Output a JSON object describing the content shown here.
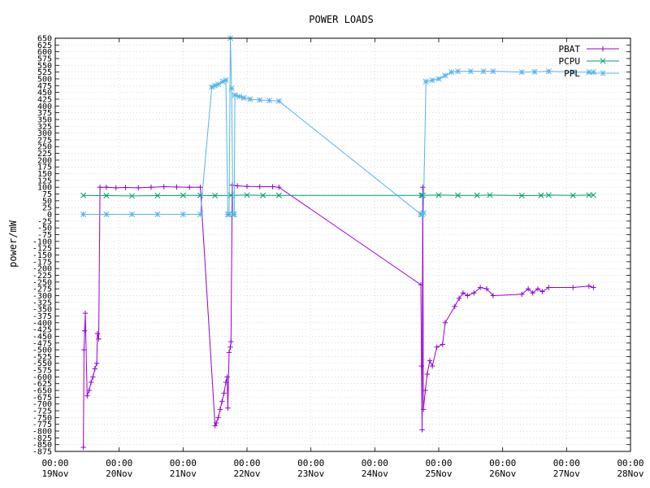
{
  "chart_data": {
    "type": "line",
    "title": "POWER LOADS",
    "xlabel": "",
    "ylabel": "power/mW",
    "ylim": [
      -875,
      650
    ],
    "ytick_step": 25,
    "xlim": [
      "19Nov 00:00",
      "28Nov 00:00"
    ],
    "x_unit": "day of November (19 = 19Nov 00:00)",
    "xticks": [
      {
        "x": 19,
        "time": "00:00",
        "date": "19Nov"
      },
      {
        "x": 20,
        "time": "00:00",
        "date": "20Nov"
      },
      {
        "x": 21,
        "time": "00:00",
        "date": "21Nov"
      },
      {
        "x": 22,
        "time": "00:00",
        "date": "22Nov"
      },
      {
        "x": 23,
        "time": "00:00",
        "date": "23Nov"
      },
      {
        "x": 24,
        "time": "00:00",
        "date": "24Nov"
      },
      {
        "x": 25,
        "time": "00:00",
        "date": "25Nov"
      },
      {
        "x": 26,
        "time": "00:00",
        "date": "26Nov"
      },
      {
        "x": 27,
        "time": "00:00",
        "date": "27Nov"
      },
      {
        "x": 28,
        "time": "00:00",
        "date": "28Nov"
      }
    ],
    "grid": true,
    "legend_position": "top-right",
    "series": [
      {
        "name": "PBAT",
        "color": "#9400d3",
        "marker": "+",
        "points": [
          [
            19.44,
            -860
          ],
          [
            19.45,
            -500
          ],
          [
            19.46,
            -430
          ],
          [
            19.47,
            -365
          ],
          [
            19.5,
            -670
          ],
          [
            19.53,
            -650
          ],
          [
            19.56,
            -620
          ],
          [
            19.59,
            -600
          ],
          [
            19.62,
            -570
          ],
          [
            19.65,
            -550
          ],
          [
            19.66,
            -440
          ],
          [
            19.68,
            -460
          ],
          [
            19.7,
            100
          ],
          [
            19.8,
            100
          ],
          [
            19.95,
            98
          ],
          [
            20.1,
            99
          ],
          [
            20.3,
            98
          ],
          [
            20.5,
            100
          ],
          [
            20.7,
            102
          ],
          [
            20.9,
            101
          ],
          [
            21.1,
            100
          ],
          [
            21.27,
            100
          ],
          [
            21.5,
            -780
          ],
          [
            21.52,
            -770
          ],
          [
            21.55,
            -750
          ],
          [
            21.58,
            -720
          ],
          [
            21.61,
            -690
          ],
          [
            21.64,
            -660
          ],
          [
            21.67,
            -620
          ],
          [
            21.69,
            -600
          ],
          [
            21.7,
            -715
          ],
          [
            21.72,
            -510
          ],
          [
            21.74,
            -490
          ],
          [
            21.75,
            -470
          ],
          [
            21.77,
            108
          ],
          [
            21.85,
            105
          ],
          [
            22.0,
            103
          ],
          [
            22.2,
            102
          ],
          [
            22.4,
            102
          ],
          [
            22.5,
            100
          ],
          [
            24.72,
            -260
          ],
          [
            24.73,
            -560
          ],
          [
            24.74,
            -795
          ],
          [
            24.75,
            100
          ],
          [
            24.76,
            -720
          ],
          [
            24.79,
            -650
          ],
          [
            24.82,
            -590
          ],
          [
            24.86,
            -540
          ],
          [
            24.9,
            -560
          ],
          [
            24.97,
            -490
          ],
          [
            25.06,
            -480
          ],
          [
            25.1,
            -400
          ],
          [
            25.25,
            -340
          ],
          [
            25.32,
            -310
          ],
          [
            25.38,
            -290
          ],
          [
            25.45,
            -300
          ],
          [
            25.55,
            -290
          ],
          [
            25.65,
            -270
          ],
          [
            25.75,
            -275
          ],
          [
            25.85,
            -300
          ],
          [
            26.3,
            -295
          ],
          [
            26.4,
            -275
          ],
          [
            26.47,
            -290
          ],
          [
            26.55,
            -275
          ],
          [
            26.62,
            -285
          ],
          [
            26.72,
            -270
          ],
          [
            27.1,
            -270
          ],
          [
            27.35,
            -265
          ],
          [
            27.42,
            -270
          ]
        ]
      },
      {
        "name": "PCPU",
        "color": "#009e73",
        "marker": "x",
        "points": [
          [
            19.44,
            70
          ],
          [
            19.8,
            69
          ],
          [
            20.2,
            68
          ],
          [
            20.6,
            69
          ],
          [
            21.0,
            70
          ],
          [
            21.27,
            70
          ],
          [
            21.5,
            69
          ],
          [
            21.75,
            70
          ],
          [
            22.0,
            71
          ],
          [
            22.25,
            70
          ],
          [
            22.5,
            70
          ],
          [
            24.73,
            70
          ],
          [
            24.75,
            70
          ],
          [
            25.0,
            71
          ],
          [
            25.3,
            70
          ],
          [
            25.6,
            70
          ],
          [
            25.8,
            71
          ],
          [
            26.3,
            69
          ],
          [
            26.6,
            70
          ],
          [
            26.72,
            71
          ],
          [
            27.1,
            70
          ],
          [
            27.35,
            71
          ],
          [
            27.42,
            71
          ]
        ]
      },
      {
        "name": "PPL",
        "color": "#56b4e9",
        "marker": "*",
        "points": [
          [
            19.44,
            0
          ],
          [
            19.8,
            0
          ],
          [
            20.2,
            0
          ],
          [
            20.6,
            0
          ],
          [
            21.0,
            0
          ],
          [
            21.27,
            0
          ],
          [
            21.45,
            470
          ],
          [
            21.5,
            475
          ],
          [
            21.55,
            480
          ],
          [
            21.62,
            490
          ],
          [
            21.67,
            495
          ],
          [
            21.7,
            0
          ],
          [
            21.72,
            0
          ],
          [
            21.74,
            650
          ],
          [
            21.76,
            465
          ],
          [
            21.78,
            0
          ],
          [
            21.8,
            0
          ],
          [
            21.81,
            440
          ],
          [
            21.88,
            435
          ],
          [
            21.95,
            430
          ],
          [
            22.05,
            425
          ],
          [
            22.2,
            422
          ],
          [
            22.35,
            420
          ],
          [
            22.5,
            418
          ],
          [
            24.72,
            0
          ],
          [
            24.74,
            0
          ],
          [
            24.76,
            5
          ],
          [
            24.8,
            490
          ],
          [
            24.9,
            495
          ],
          [
            25.0,
            500
          ],
          [
            25.1,
            512
          ],
          [
            25.2,
            525
          ],
          [
            25.3,
            528
          ],
          [
            25.5,
            528
          ],
          [
            25.7,
            528
          ],
          [
            25.85,
            528
          ],
          [
            26.3,
            525
          ],
          [
            26.5,
            526
          ],
          [
            26.72,
            528
          ],
          [
            27.1,
            525
          ],
          [
            27.35,
            525
          ],
          [
            27.42,
            525
          ]
        ]
      }
    ]
  }
}
